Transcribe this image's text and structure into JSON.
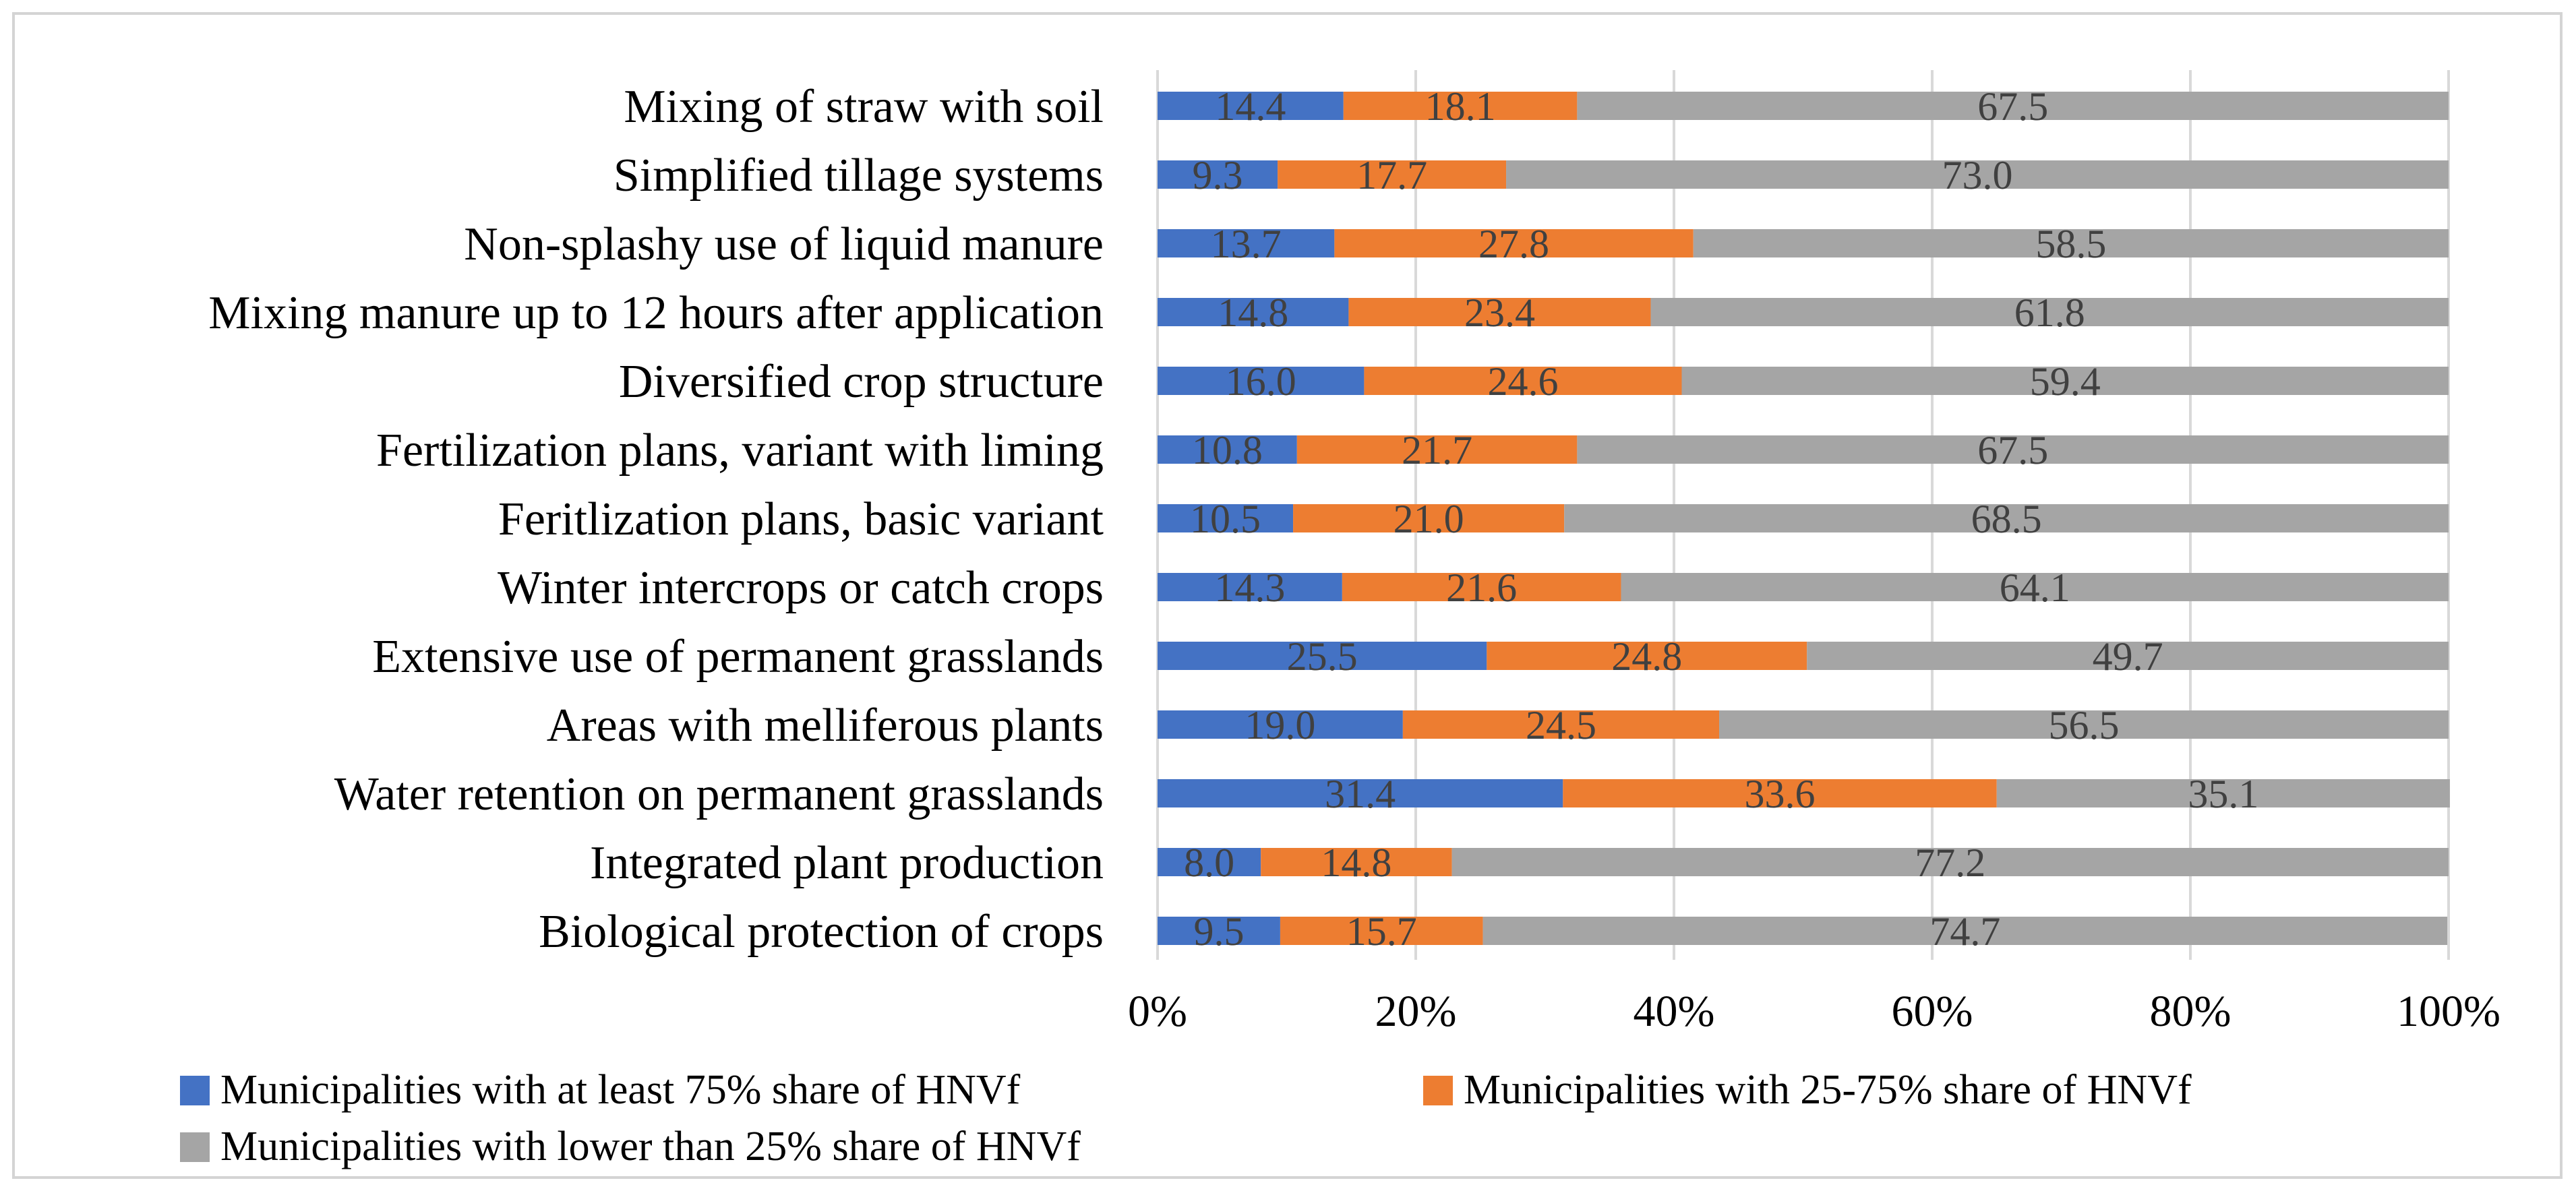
{
  "chart_data": {
    "type": "bar",
    "orientation": "horizontal",
    "stacked": "percent",
    "title": "",
    "xlabel": "",
    "ylabel": "",
    "xlim": [
      0,
      100
    ],
    "x_ticks": [
      "0%",
      "20%",
      "40%",
      "60%",
      "80%",
      "100%"
    ],
    "grid": true,
    "legend_position": "bottom",
    "categories": [
      "Mixing of straw with soil",
      "Simplified tillage systems",
      "Non-splashy use of liquid manure",
      "Mixing manure up to 12 hours after application",
      "Diversified crop structure",
      "Fertilization plans, variant with liming",
      "Feritlization plans, basic variant",
      "Winter intercrops or catch crops",
      "Extensive use of permanent grasslands",
      "Areas with melliferous plants",
      "Water retention on permanent grasslands",
      "Integrated plant production",
      "Biological protection of crops"
    ],
    "series": [
      {
        "name": "Municipalities with at least 75% share of HNVf",
        "color": "#4472c4",
        "values": [
          14.4,
          9.3,
          13.7,
          14.8,
          16.0,
          10.8,
          10.5,
          14.3,
          25.5,
          19.0,
          31.4,
          8.0,
          9.5
        ],
        "labels": [
          "14.4",
          "9.3",
          "13.7",
          "14.8",
          "16.0",
          "10.8",
          "10.5",
          "14.3",
          "25.5",
          "19.0",
          "31.4",
          "8.0",
          "9.5"
        ]
      },
      {
        "name": "Municipalities with 25-75% share of HNVf",
        "color": "#ed7d31",
        "values": [
          18.1,
          17.7,
          27.8,
          23.4,
          24.6,
          21.7,
          21.0,
          21.6,
          24.8,
          24.5,
          33.6,
          14.8,
          15.7
        ],
        "labels": [
          "18.1",
          "17.7",
          "27.8",
          "23.4",
          "24.6",
          "21.7",
          "21.0",
          "21.6",
          "24.8",
          "24.5",
          "33.6",
          "14.8",
          "15.7"
        ]
      },
      {
        "name": "Municipalities with lower than 25% share of HNVf",
        "color": "#a5a5a5",
        "values": [
          67.5,
          73.0,
          58.5,
          61.8,
          59.4,
          67.5,
          68.5,
          64.1,
          49.7,
          56.5,
          35.1,
          77.2,
          74.7
        ],
        "labels": [
          "67.5",
          "73.0",
          "58.5",
          "61.8",
          "59.4",
          "67.5",
          "68.5",
          "64.1",
          "49.7",
          "56.5",
          "35.1",
          "77.2",
          "74.7"
        ]
      }
    ]
  }
}
